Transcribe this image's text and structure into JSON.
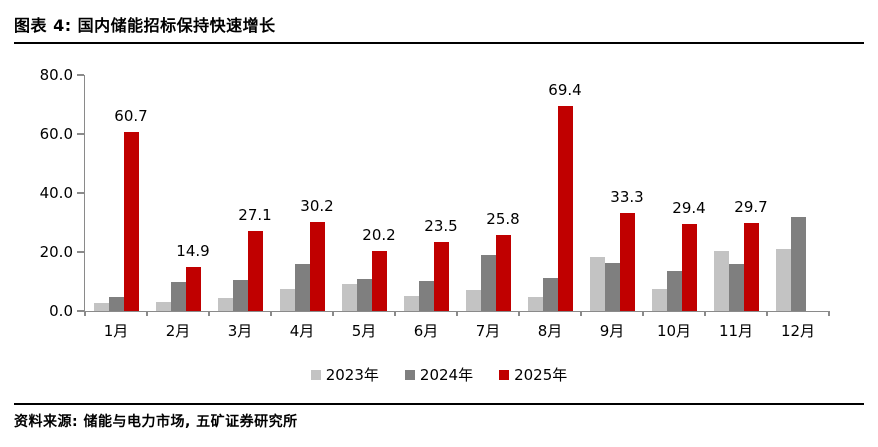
{
  "header": {
    "title": "图表 4: 国内储能招标保持快速增长"
  },
  "footer": {
    "source": "资料来源: 储能与电力市场, 五矿证券研究所"
  },
  "colors": {
    "series_2023": "#c3c3c3",
    "series_2024": "#7f7f7f",
    "series_2025": "#c00000",
    "axis": "#8a8a8a",
    "rule": "#000000"
  },
  "chart_data": {
    "type": "bar",
    "title": "图表 4: 国内储能招标保持快速增长",
    "categories": [
      "1月",
      "2月",
      "3月",
      "4月",
      "5月",
      "6月",
      "7月",
      "8月",
      "9月",
      "10月",
      "11月",
      "12月"
    ],
    "series": [
      {
        "name": "2023年",
        "color": "#c3c3c3",
        "data_labels": false,
        "values": [
          2.6,
          3.2,
          4.3,
          7.4,
          9.3,
          5.1,
          7.1,
          4.9,
          18.3,
          7.5,
          20.4,
          21.0
        ]
      },
      {
        "name": "2024年",
        "color": "#7f7f7f",
        "data_labels": false,
        "values": [
          4.9,
          10.0,
          10.5,
          15.9,
          10.8,
          10.3,
          19.1,
          11.3,
          16.2,
          13.5,
          16.1,
          32.0
        ]
      },
      {
        "name": "2025年",
        "color": "#c00000",
        "data_labels": true,
        "values": [
          60.7,
          14.9,
          27.1,
          30.2,
          20.2,
          23.5,
          25.8,
          69.4,
          33.3,
          29.4,
          29.7,
          null
        ]
      }
    ],
    "ylim": [
      0,
      80
    ],
    "ytick_step": 20,
    "ytick_labels": [
      "0.0",
      "20.0",
      "40.0",
      "60.0",
      "80.0"
    ],
    "xlabel": "",
    "ylabel": "",
    "grid": false,
    "legend_position": "bottom"
  }
}
